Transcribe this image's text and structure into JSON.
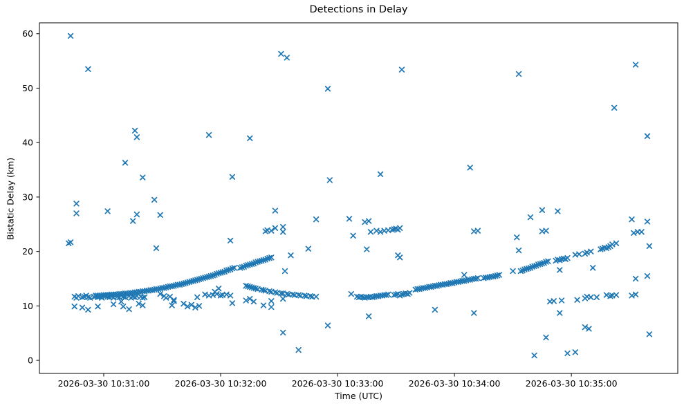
{
  "title": "Detections in Delay",
  "xlabel": "Time (UTC)",
  "ylabel": "Bistatic Delay (km)",
  "chart_data": {
    "type": "scatter",
    "title": "Detections in Delay",
    "xlabel": "Time (UTC)",
    "ylabel": "Bistatic Delay (km)",
    "marker": "x",
    "marker_color": "#1f77b4",
    "axis_color": "#000000",
    "background_color": "#ffffff",
    "grid": false,
    "legend": null,
    "x_unit": "seconds after 2026-03-30 10:30:00 UTC",
    "xlim": [
      27,
      354.6
    ],
    "ylim": [
      -2.4,
      62
    ],
    "y_ticks": [
      0,
      10,
      20,
      30,
      40,
      50,
      60
    ],
    "x_ticks": [
      {
        "t": 60,
        "label": "2026-03-30 10:31:00"
      },
      {
        "t": 120,
        "label": "2026-03-30 10:32:00"
      },
      {
        "t": 180,
        "label": "2026-03-30 10:33:00"
      },
      {
        "t": 240,
        "label": "2026-03-30 10:34:00"
      },
      {
        "t": 300,
        "label": "2026-03-30 10:35:00"
      }
    ],
    "points": [
      [
        43,
        59.6
      ],
      [
        52,
        53.5
      ],
      [
        151,
        56.3
      ],
      [
        154,
        55.6
      ],
      [
        175,
        49.9
      ],
      [
        213,
        53.4
      ],
      [
        273,
        52.6
      ],
      [
        333,
        54.3
      ],
      [
        322,
        46.4
      ],
      [
        339,
        41.2
      ],
      [
        76,
        42.2
      ],
      [
        77,
        41.0
      ],
      [
        114,
        41.4
      ],
      [
        135,
        40.8
      ],
      [
        71,
        36.3
      ],
      [
        80,
        33.6
      ],
      [
        126,
        33.7
      ],
      [
        176,
        33.1
      ],
      [
        202,
        34.2
      ],
      [
        248,
        35.4
      ],
      [
        46,
        28.8
      ],
      [
        46,
        27.0
      ],
      [
        62,
        27.4
      ],
      [
        75,
        25.6
      ],
      [
        77,
        26.8
      ],
      [
        86,
        29.5
      ],
      [
        89,
        26.7
      ],
      [
        148,
        27.5
      ],
      [
        42,
        21.5
      ],
      [
        43,
        21.7
      ],
      [
        87,
        20.6
      ],
      [
        125,
        22.0
      ],
      [
        143,
        23.7
      ],
      [
        144,
        23.9
      ],
      [
        146,
        23.8
      ],
      [
        148,
        24.3
      ],
      [
        152,
        24.5
      ],
      [
        152,
        23.6
      ],
      [
        156,
        19.3
      ],
      [
        165,
        20.5
      ],
      [
        153,
        16.4
      ],
      [
        152,
        5.1
      ],
      [
        160,
        1.9
      ],
      [
        175,
        6.4
      ],
      [
        169,
        25.9
      ],
      [
        186,
        26.0
      ],
      [
        188,
        22.9
      ],
      [
        194,
        25.4
      ],
      [
        196,
        25.6
      ],
      [
        195,
        20.4
      ],
      [
        211,
        19.3
      ],
      [
        212,
        18.9
      ],
      [
        196,
        8.1
      ],
      [
        197,
        23.6
      ],
      [
        200,
        23.8
      ],
      [
        202,
        23.6
      ],
      [
        204,
        23.8
      ],
      [
        206,
        23.9
      ],
      [
        208,
        24.0
      ],
      [
        209,
        24.1
      ],
      [
        210,
        24.2
      ],
      [
        211,
        24.0
      ],
      [
        212,
        24.3
      ],
      [
        230,
        9.3
      ],
      [
        250,
        8.7
      ],
      [
        250,
        23.7
      ],
      [
        252,
        23.8
      ],
      [
        245,
        15.7
      ],
      [
        270,
        16.4
      ],
      [
        272,
        22.6
      ],
      [
        273,
        20.2
      ],
      [
        279,
        26.3
      ],
      [
        285,
        27.6
      ],
      [
        285,
        23.7
      ],
      [
        287,
        23.8
      ],
      [
        293,
        27.4
      ],
      [
        294,
        16.6
      ],
      [
        311,
        17.0
      ],
      [
        281,
        0.9
      ],
      [
        287,
        4.2
      ],
      [
        294,
        8.7
      ],
      [
        298,
        1.3
      ],
      [
        302,
        1.5
      ],
      [
        307,
        6.1
      ],
      [
        309,
        5.8
      ],
      [
        340,
        4.8
      ],
      [
        331,
        25.9
      ],
      [
        339,
        25.5
      ],
      [
        332,
        23.4
      ],
      [
        334,
        23.6
      ],
      [
        336,
        23.6
      ],
      [
        340,
        21.0
      ],
      [
        333,
        15.0
      ],
      [
        339,
        15.5
      ],
      [
        331,
        11.9
      ],
      [
        333,
        12.1
      ],
      [
        45,
        9.9
      ],
      [
        49,
        9.7
      ],
      [
        52,
        9.3
      ],
      [
        57,
        9.9
      ],
      [
        65,
        10.3
      ],
      [
        69,
        10.8
      ],
      [
        70,
        9.9
      ],
      [
        73,
        9.4
      ],
      [
        78,
        10.4
      ],
      [
        80,
        10.1
      ],
      [
        95,
        10.1
      ],
      [
        96,
        10.9
      ],
      [
        101,
        10.4
      ],
      [
        103,
        9.9
      ],
      [
        105,
        10.2
      ],
      [
        107,
        9.7
      ],
      [
        109,
        10.0
      ],
      [
        89,
        12.2
      ],
      [
        91,
        11.8
      ],
      [
        92,
        11.5
      ],
      [
        94,
        11.7
      ],
      [
        96,
        11.1
      ],
      [
        108,
        11.6
      ],
      [
        112,
        12.1
      ],
      [
        114,
        11.9
      ],
      [
        116,
        12.0
      ],
      [
        117,
        12.6
      ],
      [
        118,
        12.2
      ],
      [
        119,
        13.2
      ],
      [
        120,
        11.9
      ],
      [
        121,
        12.0
      ],
      [
        123,
        12.1
      ],
      [
        125,
        11.9
      ],
      [
        126,
        10.5
      ],
      [
        133,
        11.0
      ],
      [
        135,
        11.3
      ],
      [
        137,
        10.8
      ],
      [
        142,
        10.1
      ],
      [
        146,
        9.8
      ],
      [
        146,
        10.9
      ],
      [
        152,
        11.3
      ],
      [
        45,
        11.7
      ],
      [
        46,
        11.5
      ],
      [
        47,
        11.8
      ],
      [
        49,
        11.6
      ],
      [
        50,
        11.7
      ],
      [
        51,
        11.9
      ],
      [
        52,
        11.6
      ],
      [
        53,
        11.5
      ],
      [
        55,
        11.7
      ],
      [
        56,
        11.8
      ],
      [
        57,
        11.6
      ],
      [
        58,
        11.7
      ],
      [
        59,
        11.5
      ],
      [
        61,
        11.8
      ],
      [
        62,
        11.7
      ],
      [
        63,
        11.6
      ],
      [
        64,
        11.8
      ],
      [
        65,
        11.5
      ],
      [
        67,
        11.7
      ],
      [
        68,
        11.6
      ],
      [
        69,
        11.9
      ],
      [
        70,
        11.7
      ],
      [
        71,
        11.6
      ],
      [
        73,
        11.8
      ],
      [
        74,
        11.5
      ],
      [
        75,
        11.7
      ],
      [
        76,
        11.6
      ],
      [
        77,
        11.8
      ],
      [
        79,
        11.7
      ],
      [
        80,
        11.5
      ],
      [
        81,
        11.6
      ],
      [
        56,
        11.9
      ],
      [
        57,
        11.9
      ],
      [
        58,
        11.9
      ],
      [
        59,
        11.9
      ],
      [
        60,
        12.0
      ],
      [
        61,
        12.0
      ],
      [
        62,
        12.0
      ],
      [
        63,
        12.0
      ],
      [
        64,
        12.1
      ],
      [
        65,
        12.1
      ],
      [
        66,
        12.1
      ],
      [
        67,
        12.1
      ],
      [
        68,
        12.2
      ],
      [
        69,
        12.2
      ],
      [
        70,
        12.2
      ],
      [
        71,
        12.3
      ],
      [
        72,
        12.3
      ],
      [
        73,
        12.3
      ],
      [
        74,
        12.4
      ],
      [
        75,
        12.4
      ],
      [
        76,
        12.5
      ],
      [
        77,
        12.5
      ],
      [
        78,
        12.6
      ],
      [
        79,
        12.6
      ],
      [
        80,
        12.7
      ],
      [
        81,
        12.7
      ],
      [
        82,
        12.8
      ],
      [
        83,
        12.8
      ],
      [
        84,
        12.9
      ],
      [
        85,
        12.9
      ],
      [
        86,
        13.0
      ],
      [
        87,
        13.1
      ],
      [
        88,
        13.1
      ],
      [
        89,
        13.2
      ],
      [
        90,
        13.3
      ],
      [
        91,
        13.3
      ],
      [
        92,
        13.4
      ],
      [
        93,
        13.5
      ],
      [
        94,
        13.6
      ],
      [
        95,
        13.6
      ],
      [
        96,
        13.7
      ],
      [
        97,
        13.8
      ],
      [
        98,
        13.9
      ],
      [
        99,
        13.9
      ],
      [
        100,
        14.0
      ],
      [
        101,
        14.1
      ],
      [
        102,
        14.2
      ],
      [
        103,
        14.3
      ],
      [
        104,
        14.4
      ],
      [
        105,
        14.5
      ],
      [
        106,
        14.6
      ],
      [
        107,
        14.7
      ],
      [
        108,
        14.8
      ],
      [
        109,
        14.9
      ],
      [
        110,
        15.0
      ],
      [
        111,
        15.1
      ],
      [
        112,
        15.2
      ],
      [
        113,
        15.3
      ],
      [
        114,
        15.4
      ],
      [
        115,
        15.5
      ],
      [
        116,
        15.6
      ],
      [
        117,
        15.7
      ],
      [
        118,
        15.9
      ],
      [
        119,
        16.0
      ],
      [
        120,
        16.1
      ],
      [
        121,
        16.2
      ],
      [
        122,
        16.3
      ],
      [
        123,
        16.5
      ],
      [
        124,
        16.6
      ],
      [
        125,
        16.7
      ],
      [
        126,
        16.9
      ],
      [
        127,
        17.0
      ],
      [
        130,
        17.0
      ],
      [
        131,
        17.1
      ],
      [
        132,
        17.2
      ],
      [
        133,
        17.4
      ],
      [
        134,
        17.5
      ],
      [
        135,
        17.6
      ],
      [
        136,
        17.7
      ],
      [
        137,
        17.8
      ],
      [
        138,
        18.0
      ],
      [
        139,
        18.1
      ],
      [
        140,
        18.2
      ],
      [
        141,
        18.3
      ],
      [
        142,
        18.4
      ],
      [
        143,
        18.5
      ],
      [
        144,
        18.7
      ],
      [
        145,
        18.8
      ],
      [
        146,
        18.9
      ],
      [
        133,
        13.7
      ],
      [
        134,
        13.6
      ],
      [
        135,
        13.5
      ],
      [
        136,
        13.4
      ],
      [
        137,
        13.3
      ],
      [
        138,
        13.2
      ],
      [
        139,
        13.1
      ],
      [
        141,
        13.0
      ],
      [
        142,
        12.9
      ],
      [
        143,
        12.8
      ],
      [
        145,
        12.7
      ],
      [
        146,
        12.6
      ],
      [
        148,
        12.5
      ],
      [
        149,
        12.4
      ],
      [
        151,
        12.3
      ],
      [
        152,
        12.3
      ],
      [
        154,
        12.2
      ],
      [
        155,
        12.1
      ],
      [
        157,
        12.1
      ],
      [
        158,
        12.0
      ],
      [
        160,
        12.0
      ],
      [
        161,
        11.9
      ],
      [
        163,
        11.9
      ],
      [
        164,
        11.8
      ],
      [
        166,
        11.8
      ],
      [
        167,
        11.7
      ],
      [
        169,
        11.7
      ],
      [
        187,
        12.2
      ],
      [
        190,
        11.7
      ],
      [
        191,
        11.6
      ],
      [
        192,
        11.7
      ],
      [
        193,
        11.6
      ],
      [
        194,
        11.5
      ],
      [
        195,
        11.6
      ],
      [
        196,
        11.6
      ],
      [
        197,
        11.7
      ],
      [
        198,
        11.6
      ],
      [
        199,
        11.7
      ],
      [
        200,
        11.8
      ],
      [
        201,
        11.8
      ],
      [
        202,
        11.9
      ],
      [
        203,
        11.9
      ],
      [
        204,
        12.0
      ],
      [
        205,
        12.0
      ],
      [
        206,
        12.1
      ],
      [
        209,
        12.0
      ],
      [
        210,
        12.1
      ],
      [
        211,
        12.2
      ],
      [
        212,
        11.9
      ],
      [
        213,
        12.1
      ],
      [
        214,
        12.2
      ],
      [
        215,
        12.3
      ],
      [
        216,
        12.2
      ],
      [
        217,
        12.4
      ],
      [
        220,
        13.0
      ],
      [
        221,
        13.1
      ],
      [
        222,
        13.1
      ],
      [
        223,
        13.2
      ],
      [
        224,
        13.3
      ],
      [
        225,
        13.3
      ],
      [
        226,
        13.4
      ],
      [
        227,
        13.5
      ],
      [
        228,
        13.5
      ],
      [
        229,
        13.6
      ],
      [
        230,
        13.7
      ],
      [
        231,
        13.7
      ],
      [
        232,
        13.8
      ],
      [
        233,
        13.9
      ],
      [
        234,
        13.9
      ],
      [
        235,
        14.0
      ],
      [
        236,
        14.0
      ],
      [
        237,
        14.1
      ],
      [
        238,
        14.2
      ],
      [
        239,
        14.2
      ],
      [
        240,
        14.3
      ],
      [
        241,
        14.4
      ],
      [
        242,
        14.4
      ],
      [
        243,
        14.5
      ],
      [
        244,
        14.6
      ],
      [
        245,
        14.6
      ],
      [
        246,
        14.7
      ],
      [
        247,
        14.8
      ],
      [
        248,
        14.8
      ],
      [
        249,
        14.9
      ],
      [
        250,
        15.0
      ],
      [
        251,
        15.0
      ],
      [
        252,
        15.1
      ],
      [
        255,
        15.1
      ],
      [
        256,
        15.2
      ],
      [
        257,
        15.2
      ],
      [
        258,
        15.3
      ],
      [
        259,
        15.4
      ],
      [
        260,
        15.4
      ],
      [
        261,
        15.5
      ],
      [
        262,
        15.6
      ],
      [
        263,
        15.7
      ],
      [
        274,
        16.4
      ],
      [
        275,
        16.5
      ],
      [
        276,
        16.7
      ],
      [
        277,
        16.8
      ],
      [
        278,
        16.9
      ],
      [
        279,
        17.0
      ],
      [
        280,
        17.2
      ],
      [
        281,
        17.3
      ],
      [
        282,
        17.4
      ],
      [
        283,
        17.6
      ],
      [
        284,
        17.7
      ],
      [
        285,
        17.8
      ],
      [
        286,
        17.9
      ],
      [
        287,
        18.1
      ],
      [
        288,
        18.2
      ],
      [
        292,
        18.3
      ],
      [
        293,
        18.5
      ],
      [
        294,
        18.4
      ],
      [
        295,
        18.6
      ],
      [
        296,
        18.7
      ],
      [
        297,
        18.6
      ],
      [
        298,
        18.8
      ],
      [
        302,
        19.4
      ],
      [
        304,
        19.5
      ],
      [
        307,
        19.6
      ],
      [
        308,
        19.8
      ],
      [
        310,
        20.0
      ],
      [
        315,
        20.4
      ],
      [
        316,
        20.5
      ],
      [
        317,
        20.7
      ],
      [
        318,
        20.6
      ],
      [
        319,
        20.8
      ],
      [
        320,
        21.0
      ],
      [
        321,
        21.3
      ],
      [
        323,
        21.5
      ],
      [
        289,
        10.8
      ],
      [
        291,
        10.9
      ],
      [
        295,
        11.0
      ],
      [
        303,
        11.1
      ],
      [
        307,
        11.4
      ],
      [
        308,
        11.7
      ],
      [
        310,
        11.6
      ],
      [
        313,
        11.6
      ],
      [
        318,
        12.0
      ],
      [
        320,
        11.8
      ],
      [
        321,
        11.9
      ],
      [
        323,
        12.0
      ]
    ]
  }
}
